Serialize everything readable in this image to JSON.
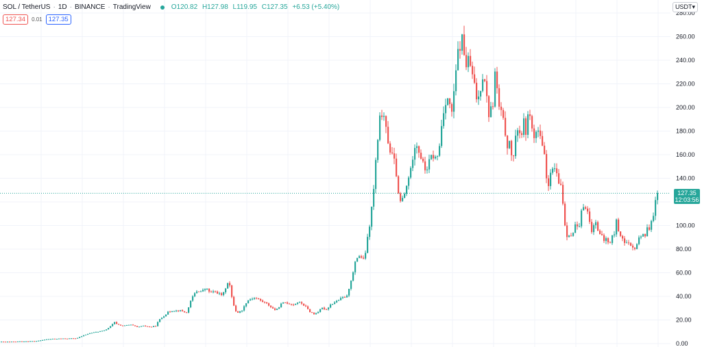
{
  "header": {
    "symbol": "SOL / TetherUS",
    "interval": "1D",
    "exchange": "BINANCE",
    "source": "TradingView",
    "open": "O120.82",
    "high": "H127.98",
    "low": "L119.95",
    "close": "C127.35",
    "change": "+6.53 (+5.40%)"
  },
  "bid_ask": {
    "bid": "127.34",
    "spread": "0.01",
    "ask": "127.35"
  },
  "axis": {
    "currency_button": "USDT",
    "currency_icon": "chevron-down-icon"
  },
  "last_price": {
    "value": "127.35",
    "countdown": "12:03:56"
  },
  "colors": {
    "up": "#26a69a",
    "down": "#ef5350",
    "price_line": "#26a69a",
    "grid": "#f0f3fa"
  },
  "chart_data": {
    "type": "candlestick",
    "title": "",
    "xlabel": "",
    "ylabel": "",
    "ylim": [
      0,
      280
    ],
    "y_ticks": [
      "280.00",
      "260.00",
      "240.00",
      "220.00",
      "200.00",
      "180.00",
      "160.00",
      "140.00",
      "120.00",
      "100.00",
      "80.00",
      "60.00",
      "40.00",
      "20.00",
      "0.00"
    ],
    "grid": true,
    "last_price": 127.35,
    "close_path": [
      [
        0,
        1.5
      ],
      [
        15,
        1.5
      ],
      [
        30,
        1.8
      ],
      [
        45,
        2.0
      ],
      [
        55,
        2.2
      ],
      [
        62,
        3.0
      ],
      [
        70,
        3.8
      ],
      [
        85,
        4.2
      ],
      [
        100,
        4.3
      ],
      [
        112,
        4.5
      ],
      [
        122,
        7
      ],
      [
        132,
        9
      ],
      [
        142,
        10
      ],
      [
        152,
        11
      ],
      [
        160,
        14
      ],
      [
        167,
        18
      ],
      [
        172,
        16
      ],
      [
        180,
        15
      ],
      [
        190,
        16
      ],
      [
        200,
        14
      ],
      [
        210,
        15
      ],
      [
        220,
        14
      ],
      [
        227,
        15
      ],
      [
        232,
        20
      ],
      [
        238,
        23
      ],
      [
        246,
        27
      ],
      [
        253,
        28
      ],
      [
        262,
        28
      ],
      [
        268,
        27
      ],
      [
        272,
        26
      ],
      [
        276,
        33
      ],
      [
        282,
        41
      ],
      [
        288,
        45
      ],
      [
        294,
        44
      ],
      [
        300,
        47
      ],
      [
        307,
        43
      ],
      [
        314,
        44
      ],
      [
        320,
        42
      ],
      [
        325,
        41
      ],
      [
        330,
        49
      ],
      [
        334,
        55
      ],
      [
        336,
        43
      ],
      [
        339,
        37
      ],
      [
        343,
        28
      ],
      [
        348,
        26
      ],
      [
        354,
        29
      ],
      [
        360,
        36
      ],
      [
        366,
        38
      ],
      [
        372,
        39
      ],
      [
        378,
        37
      ],
      [
        385,
        35
      ],
      [
        391,
        33
      ],
      [
        397,
        30
      ],
      [
        403,
        28
      ],
      [
        409,
        33
      ],
      [
        415,
        35
      ],
      [
        421,
        34
      ],
      [
        428,
        33
      ],
      [
        434,
        35
      ],
      [
        440,
        34
      ],
      [
        446,
        31
      ],
      [
        452,
        27
      ],
      [
        458,
        25
      ],
      [
        464,
        27
      ],
      [
        470,
        30
      ],
      [
        476,
        29
      ],
      [
        482,
        33
      ],
      [
        488,
        35
      ],
      [
        494,
        37
      ],
      [
        500,
        39
      ],
      [
        506,
        40
      ],
      [
        511,
        52
      ],
      [
        515,
        60
      ],
      [
        519,
        71
      ],
      [
        523,
        75
      ],
      [
        527,
        73
      ],
      [
        531,
        70
      ],
      [
        535,
        85
      ],
      [
        539,
        100
      ],
      [
        542,
        115
      ],
      [
        545,
        130
      ],
      [
        548,
        155
      ],
      [
        551,
        170
      ],
      [
        554,
        190
      ],
      [
        557,
        195
      ],
      [
        561,
        187
      ],
      [
        565,
        175
      ],
      [
        569,
        163
      ],
      [
        573,
        158
      ],
      [
        577,
        150
      ],
      [
        581,
        125
      ],
      [
        584,
        120
      ],
      [
        588,
        123
      ],
      [
        592,
        130
      ],
      [
        596,
        142
      ],
      [
        599,
        146
      ],
      [
        603,
        163
      ],
      [
        606,
        172
      ],
      [
        609,
        167
      ],
      [
        613,
        160
      ],
      [
        617,
        152
      ],
      [
        621,
        146
      ],
      [
        625,
        152
      ],
      [
        629,
        158
      ],
      [
        633,
        159
      ],
      [
        637,
        155
      ],
      [
        641,
        168
      ],
      [
        645,
        190
      ],
      [
        649,
        205
      ],
      [
        653,
        208
      ],
      [
        657,
        198
      ],
      [
        660,
        196
      ],
      [
        664,
        224
      ],
      [
        667,
        244
      ],
      [
        670,
        250
      ],
      [
        674,
        258
      ],
      [
        677,
        245
      ],
      [
        680,
        236
      ],
      [
        683,
        240
      ],
      [
        686,
        235
      ],
      [
        689,
        226
      ],
      [
        693,
        215
      ],
      [
        696,
        205
      ],
      [
        699,
        210
      ],
      [
        703,
        226
      ],
      [
        706,
        230
      ],
      [
        709,
        215
      ],
      [
        712,
        192
      ],
      [
        715,
        200
      ],
      [
        718,
        195
      ],
      [
        722,
        229
      ],
      [
        725,
        215
      ],
      [
        728,
        200
      ],
      [
        732,
        193
      ],
      [
        735,
        185
      ],
      [
        738,
        175
      ],
      [
        741,
        165
      ],
      [
        744,
        170
      ],
      [
        747,
        156
      ],
      [
        750,
        160
      ],
      [
        754,
        185
      ],
      [
        757,
        180
      ],
      [
        760,
        176
      ],
      [
        764,
        187
      ],
      [
        767,
        180
      ],
      [
        771,
        194
      ],
      [
        774,
        198
      ],
      [
        777,
        172
      ],
      [
        780,
        176
      ],
      [
        784,
        182
      ],
      [
        787,
        176
      ],
      [
        790,
        168
      ],
      [
        794,
        158
      ],
      [
        797,
        140
      ],
      [
        800,
        136
      ],
      [
        804,
        144
      ],
      [
        807,
        149
      ],
      [
        810,
        148
      ],
      [
        813,
        138
      ],
      [
        816,
        134
      ],
      [
        819,
        135
      ],
      [
        822,
        112
      ],
      [
        825,
        95
      ],
      [
        828,
        90
      ],
      [
        831,
        95
      ],
      [
        835,
        88
      ],
      [
        838,
        102
      ],
      [
        841,
        99
      ],
      [
        844,
        94
      ],
      [
        847,
        108
      ],
      [
        850,
        116
      ],
      [
        853,
        118
      ],
      [
        856,
        114
      ],
      [
        860,
        103
      ],
      [
        863,
        96
      ],
      [
        866,
        99
      ],
      [
        869,
        105
      ],
      [
        872,
        97
      ],
      [
        875,
        92
      ],
      [
        878,
        90
      ],
      [
        881,
        87
      ],
      [
        884,
        89
      ],
      [
        887,
        85
      ],
      [
        890,
        86
      ],
      [
        893,
        91
      ],
      [
        896,
        93
      ],
      [
        899,
        104
      ],
      [
        902,
        96
      ],
      [
        905,
        92
      ],
      [
        908,
        90
      ],
      [
        911,
        85
      ],
      [
        914,
        85
      ],
      [
        918,
        83
      ],
      [
        921,
        81
      ],
      [
        924,
        80
      ],
      [
        927,
        82
      ],
      [
        930,
        86
      ],
      [
        934,
        91
      ],
      [
        937,
        95
      ],
      [
        940,
        90
      ],
      [
        943,
        96
      ],
      [
        947,
        98
      ],
      [
        950,
        106
      ],
      [
        953,
        110
      ],
      [
        956,
        120
      ],
      [
        959,
        127.35
      ]
    ]
  }
}
